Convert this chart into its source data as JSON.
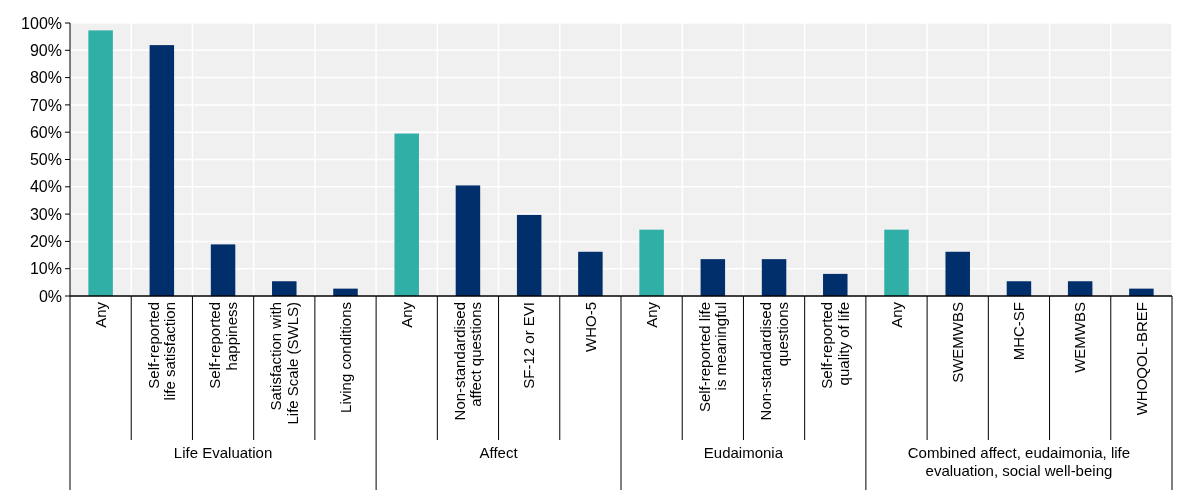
{
  "chart_data": {
    "type": "bar",
    "categories": [
      "Any",
      "Self-reported\nlife satisfaction",
      "Self-reported\nhappiness",
      "Satisfaction with\nLife Scale (SWLS)",
      "Living conditions",
      "Any",
      "Non-standardised\naffect questions",
      "SF-12 or EVI",
      "WHO-5",
      "Any",
      "Self-reported life\nis meaningful",
      "Non-standardised\nquestions",
      "Self-reported\nquality of life",
      "Any",
      "SWEMWBS",
      "MHC-SF",
      "WEMWBS",
      "WHOQOL-BREF"
    ],
    "values": [
      97.3,
      91.9,
      18.9,
      5.4,
      2.7,
      59.5,
      40.5,
      29.7,
      16.2,
      24.3,
      13.5,
      13.5,
      8.1,
      24.3,
      16.2,
      5.4,
      5.4,
      2.7
    ],
    "colors": [
      "#30afa6",
      "#002f6c",
      "#002f6c",
      "#002f6c",
      "#002f6c",
      "#30afa6",
      "#002f6c",
      "#002f6c",
      "#002f6c",
      "#30afa6",
      "#002f6c",
      "#002f6c",
      "#002f6c",
      "#30afa6",
      "#002f6c",
      "#002f6c",
      "#002f6c",
      "#002f6c"
    ],
    "ylim": [
      0,
      100
    ],
    "yticks": [
      {
        "value": 0,
        "label": "0%"
      },
      {
        "value": 10,
        "label": "10%"
      },
      {
        "value": 20,
        "label": "20%"
      },
      {
        "value": 30,
        "label": "30%"
      },
      {
        "value": 40,
        "label": "40%"
      },
      {
        "value": 50,
        "label": "50%"
      },
      {
        "value": 60,
        "label": "60%"
      },
      {
        "value": 70,
        "label": "70%"
      },
      {
        "value": 80,
        "label": "80%"
      },
      {
        "value": 90,
        "label": "90%"
      },
      {
        "value": 100,
        "label": "100%"
      }
    ],
    "grid": true,
    "annotations": [
      "Life Evaluation",
      "Affect",
      "Eudaimonia",
      "Combined affect, eudaimonia, life\nevaluation, social well-being"
    ]
  }
}
